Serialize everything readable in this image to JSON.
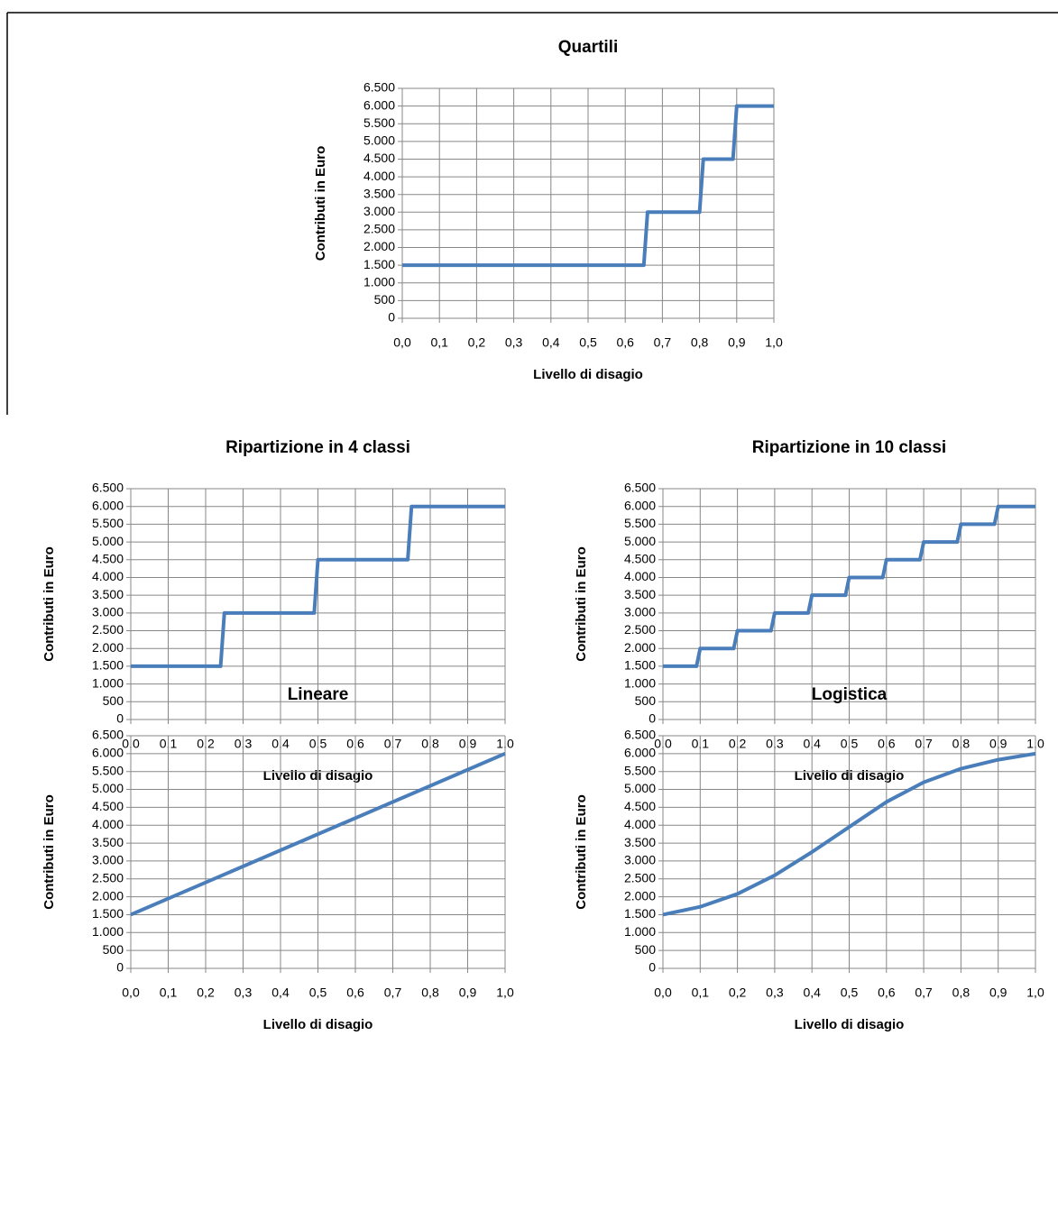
{
  "chart_data": [
    {
      "type": "line",
      "title": "Quartili",
      "xlabel": "Livello di disagio",
      "ylabel": "Contributi in Euro",
      "x": [
        0,
        0.65,
        0.66,
        0.8,
        0.81,
        0.89,
        0.9,
        1.0
      ],
      "values": [
        1500,
        1500,
        3000,
        3000,
        4500,
        4500,
        6000,
        6000
      ],
      "color": "#4a7ebb",
      "xlim": [
        0,
        1
      ],
      "ylim": [
        0,
        6500
      ],
      "grid": true,
      "xticks": [
        {
          "value": 0,
          "label": "0,0"
        },
        {
          "value": 0.1,
          "label": "0,1"
        },
        {
          "value": 0.2,
          "label": "0,2"
        },
        {
          "value": 0.3,
          "label": "0,3"
        },
        {
          "value": 0.4,
          "label": "0,4"
        },
        {
          "value": 0.5,
          "label": "0,5"
        },
        {
          "value": 0.6,
          "label": "0,6"
        },
        {
          "value": 0.7,
          "label": "0,7"
        },
        {
          "value": 0.8,
          "label": "0,8"
        },
        {
          "value": 0.9,
          "label": "0,9"
        },
        {
          "value": 1.0,
          "label": "1,0"
        }
      ],
      "yticks": [
        0,
        500,
        {
          "value": 1000,
          "label": "1.000"
        },
        {
          "value": 1500,
          "label": "1.500"
        },
        {
          "value": 2000,
          "label": "2.000"
        },
        {
          "value": 2500,
          "label": "2.500"
        },
        {
          "value": 3000,
          "label": "3.000"
        },
        {
          "value": 3500,
          "label": "3.500"
        },
        {
          "value": 4000,
          "label": "4.000"
        },
        {
          "value": 4500,
          "label": "4.500"
        },
        {
          "value": 5000,
          "label": "5.000"
        },
        {
          "value": 5500,
          "label": "5.500"
        },
        {
          "value": 6000,
          "label": "6.000"
        },
        {
          "value": 6500,
          "label": "6.500"
        }
      ]
    },
    {
      "type": "line",
      "title": "Ripartizione in 4 classi",
      "xlabel": "Livello di disagio",
      "ylabel": "Contributi in Euro",
      "x": [
        0,
        0.24,
        0.25,
        0.49,
        0.5,
        0.74,
        0.75,
        1.0
      ],
      "values": [
        1500,
        1500,
        3000,
        3000,
        4500,
        4500,
        6000,
        6000
      ],
      "color": "#4a7ebb",
      "xlim": [
        0,
        1
      ],
      "ylim": [
        0,
        6500
      ],
      "grid": true,
      "xticks": [
        {
          "value": 0,
          "label": "0,0"
        },
        {
          "value": 0.1,
          "label": "0,1"
        },
        {
          "value": 0.2,
          "label": "0,2"
        },
        {
          "value": 0.3,
          "label": "0,3"
        },
        {
          "value": 0.4,
          "label": "0,4"
        },
        {
          "value": 0.5,
          "label": "0,5"
        },
        {
          "value": 0.6,
          "label": "0,6"
        },
        {
          "value": 0.7,
          "label": "0,7"
        },
        {
          "value": 0.8,
          "label": "0,8"
        },
        {
          "value": 0.9,
          "label": "0,9"
        },
        {
          "value": 1.0,
          "label": "1,0"
        }
      ],
      "yticks": [
        0,
        500,
        {
          "value": 1000,
          "label": "1.000"
        },
        {
          "value": 1500,
          "label": "1.500"
        },
        {
          "value": 2000,
          "label": "2.000"
        },
        {
          "value": 2500,
          "label": "2.500"
        },
        {
          "value": 3000,
          "label": "3.000"
        },
        {
          "value": 3500,
          "label": "3.500"
        },
        {
          "value": 4000,
          "label": "4.000"
        },
        {
          "value": 4500,
          "label": "4.500"
        },
        {
          "value": 5000,
          "label": "5.000"
        },
        {
          "value": 5500,
          "label": "5.500"
        },
        {
          "value": 6000,
          "label": "6.000"
        },
        {
          "value": 6500,
          "label": "6.500"
        }
      ]
    },
    {
      "type": "line",
      "title": "Ripartizione in 10 classi",
      "xlabel": "Livello di disagio",
      "ylabel": "Contributi in Euro",
      "x": [
        0,
        0.09,
        0.1,
        0.19,
        0.2,
        0.29,
        0.3,
        0.39,
        0.4,
        0.49,
        0.5,
        0.59,
        0.6,
        0.69,
        0.7,
        0.79,
        0.8,
        0.89,
        0.9,
        1.0
      ],
      "values": [
        1500,
        1500,
        2000,
        2000,
        2500,
        2500,
        3000,
        3000,
        3500,
        3500,
        4000,
        4000,
        4500,
        4500,
        5000,
        5000,
        5500,
        5500,
        6000,
        6000
      ],
      "color": "#4a7ebb",
      "xlim": [
        0,
        1
      ],
      "ylim": [
        0,
        6500
      ],
      "grid": true,
      "xticks": [
        {
          "value": 0,
          "label": "0,0"
        },
        {
          "value": 0.1,
          "label": "0,1"
        },
        {
          "value": 0.2,
          "label": "0,2"
        },
        {
          "value": 0.3,
          "label": "0,3"
        },
        {
          "value": 0.4,
          "label": "0,4"
        },
        {
          "value": 0.5,
          "label": "0,5"
        },
        {
          "value": 0.6,
          "label": "0,6"
        },
        {
          "value": 0.7,
          "label": "0,7"
        },
        {
          "value": 0.8,
          "label": "0,8"
        },
        {
          "value": 0.9,
          "label": "0,9"
        },
        {
          "value": 1.0,
          "label": "1,0"
        }
      ],
      "yticks": [
        0,
        500,
        {
          "value": 1000,
          "label": "1.000"
        },
        {
          "value": 1500,
          "label": "1.500"
        },
        {
          "value": 2000,
          "label": "2.000"
        },
        {
          "value": 2500,
          "label": "2.500"
        },
        {
          "value": 3000,
          "label": "3.000"
        },
        {
          "value": 3500,
          "label": "3.500"
        },
        {
          "value": 4000,
          "label": "4.000"
        },
        {
          "value": 4500,
          "label": "4.500"
        },
        {
          "value": 5000,
          "label": "5.000"
        },
        {
          "value": 5500,
          "label": "5.500"
        },
        {
          "value": 6000,
          "label": "6.000"
        },
        {
          "value": 6500,
          "label": "6.500"
        }
      ]
    },
    {
      "type": "line",
      "title": "Lineare",
      "xlabel": "Livello di disagio",
      "ylabel": "Contributi in Euro",
      "x": [
        0,
        1.0
      ],
      "values": [
        1500,
        6000
      ],
      "color": "#4a7ebb",
      "xlim": [
        0,
        1
      ],
      "ylim": [
        0,
        6500
      ],
      "grid": true,
      "xticks": [
        {
          "value": 0,
          "label": "0,0"
        },
        {
          "value": 0.1,
          "label": "0,1"
        },
        {
          "value": 0.2,
          "label": "0,2"
        },
        {
          "value": 0.3,
          "label": "0,3"
        },
        {
          "value": 0.4,
          "label": "0,4"
        },
        {
          "value": 0.5,
          "label": "0,5"
        },
        {
          "value": 0.6,
          "label": "0,6"
        },
        {
          "value": 0.7,
          "label": "0,7"
        },
        {
          "value": 0.8,
          "label": "0,8"
        },
        {
          "value": 0.9,
          "label": "0,9"
        },
        {
          "value": 1.0,
          "label": "1,0"
        }
      ],
      "yticks": [
        0,
        500,
        {
          "value": 1000,
          "label": "1.000"
        },
        {
          "value": 1500,
          "label": "1.500"
        },
        {
          "value": 2000,
          "label": "2.000"
        },
        {
          "value": 2500,
          "label": "2.500"
        },
        {
          "value": 3000,
          "label": "3.000"
        },
        {
          "value": 3500,
          "label": "3.500"
        },
        {
          "value": 4000,
          "label": "4.000"
        },
        {
          "value": 4500,
          "label": "4.500"
        },
        {
          "value": 5000,
          "label": "5.000"
        },
        {
          "value": 5500,
          "label": "5.500"
        },
        {
          "value": 6000,
          "label": "6.000"
        },
        {
          "value": 6500,
          "label": "6.500"
        }
      ]
    },
    {
      "type": "line",
      "title": "Logistica",
      "xlabel": "Livello di disagio",
      "ylabel": "Contributi in Euro",
      "x": [
        0,
        0.1,
        0.2,
        0.3,
        0.4,
        0.5,
        0.6,
        0.7,
        0.8,
        0.9,
        1.0
      ],
      "values": [
        1500,
        1720,
        2080,
        2600,
        3250,
        3950,
        4650,
        5200,
        5580,
        5830,
        6000
      ],
      "color": "#4a7ebb",
      "xlim": [
        0,
        1
      ],
      "ylim": [
        0,
        6500
      ],
      "grid": true,
      "xticks": [
        {
          "value": 0,
          "label": "0,0"
        },
        {
          "value": 0.1,
          "label": "0,1"
        },
        {
          "value": 0.2,
          "label": "0,2"
        },
        {
          "value": 0.3,
          "label": "0,3"
        },
        {
          "value": 0.4,
          "label": "0,4"
        },
        {
          "value": 0.5,
          "label": "0,5"
        },
        {
          "value": 0.6,
          "label": "0,6"
        },
        {
          "value": 0.7,
          "label": "0,7"
        },
        {
          "value": 0.8,
          "label": "0,8"
        },
        {
          "value": 0.9,
          "label": "0,9"
        },
        {
          "value": 1.0,
          "label": "1,0"
        }
      ],
      "yticks": [
        0,
        500,
        {
          "value": 1000,
          "label": "1.000"
        },
        {
          "value": 1500,
          "label": "1.500"
        },
        {
          "value": 2000,
          "label": "2.000"
        },
        {
          "value": 2500,
          "label": "2.500"
        },
        {
          "value": 3000,
          "label": "3.000"
        },
        {
          "value": 3500,
          "label": "3.500"
        },
        {
          "value": 4000,
          "label": "4.000"
        },
        {
          "value": 4500,
          "label": "4.500"
        },
        {
          "value": 5000,
          "label": "5.000"
        },
        {
          "value": 5500,
          "label": "5.500"
        },
        {
          "value": 6000,
          "label": "6.000"
        },
        {
          "value": 6500,
          "label": "6.500"
        }
      ]
    }
  ]
}
